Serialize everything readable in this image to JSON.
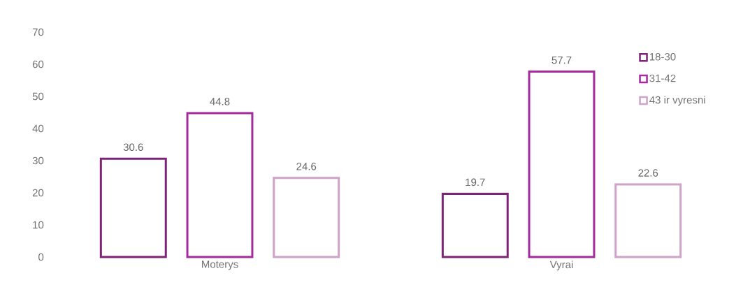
{
  "chart_data": {
    "type": "bar",
    "categories": [
      "Moterys",
      "Vyrai"
    ],
    "series": [
      {
        "name": "18-30",
        "color": "#7e2477",
        "values": [
          30.6,
          19.7
        ]
      },
      {
        "name": "31-42",
        "color": "#a52a9e",
        "values": [
          44.8,
          57.7
        ]
      },
      {
        "name": "43 ir vyresni",
        "color": "#cfa2c8",
        "values": [
          24.6,
          22.6
        ]
      }
    ],
    "ylim": [
      0,
      70
    ],
    "yticks": [
      0,
      10,
      20,
      30,
      40,
      50,
      60,
      70
    ],
    "data_labels": true,
    "legend": "right",
    "grid": false
  }
}
